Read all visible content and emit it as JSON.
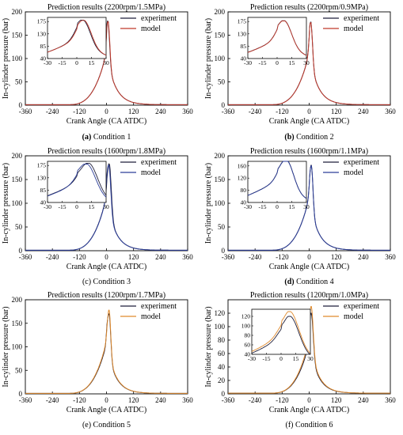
{
  "chart_data": [
    {
      "type": "line",
      "title": "Prediction results (2200rpm/1.5MPa)",
      "xlabel": "Crank Angle (CA ATDC)",
      "ylabel": "In-cylinder pressure (bar)",
      "caption_prefix": "(a)",
      "caption_text": " Condition 1",
      "caption_bold": true,
      "xlim": [
        -360,
        360
      ],
      "xticks": [
        -360,
        -240,
        -120,
        0,
        120,
        240,
        360
      ],
      "ylim": [
        0,
        200
      ],
      "yticks": [
        0,
        50,
        100,
        150,
        200
      ],
      "legend_position": "top-right",
      "peak": 180,
      "series": [
        {
          "name": "experiment",
          "color": "#1f1f3a",
          "peak": 180,
          "peak_angle": 7
        },
        {
          "name": "model",
          "color": "#c0392b",
          "peak": 179,
          "peak_angle": 8
        }
      ],
      "inset": {
        "xlim": [
          -30,
          30
        ],
        "xticks": [
          -30,
          -15,
          0,
          15,
          30
        ],
        "ylim": [
          40,
          190
        ],
        "yticks": [
          40,
          85,
          130,
          175
        ]
      }
    },
    {
      "type": "line",
      "title": "Prediction results (2200rpm/0.9MPa)",
      "xlabel": "Crank Angle (CA ATDC)",
      "ylabel": "In-cylinder pressure (bar)",
      "caption_prefix": "(b)",
      "caption_text": " Condition 2",
      "caption_bold": true,
      "xlim": [
        -360,
        360
      ],
      "xticks": [
        -360,
        -240,
        -120,
        0,
        120,
        240,
        360
      ],
      "ylim": [
        0,
        200
      ],
      "yticks": [
        0,
        50,
        100,
        150,
        200
      ],
      "legend_position": "top-right",
      "peak": 178,
      "series": [
        {
          "name": "experiment",
          "color": "#1f1f3a",
          "peak": 178,
          "peak_angle": 8
        },
        {
          "name": "model",
          "color": "#c0392b",
          "peak": 177,
          "peak_angle": 8
        }
      ],
      "inset": {
        "xlim": [
          -30,
          30
        ],
        "xticks": [
          -30,
          -15,
          0,
          15,
          30
        ],
        "ylim": [
          40,
          190
        ],
        "yticks": [
          40,
          85,
          130,
          175
        ]
      }
    },
    {
      "type": "line",
      "title": "Prediction results (1600rpm/1.8MPa)",
      "xlabel": "Crank Angle (CA ATDC)",
      "ylabel": "In-cylinder pressure (bar)",
      "caption_prefix": "(c)",
      "caption_text": " Condition 3",
      "caption_bold": false,
      "xlim": [
        -360,
        360
      ],
      "xticks": [
        -360,
        -240,
        -120,
        0,
        120,
        240,
        360
      ],
      "ylim": [
        0,
        200
      ],
      "yticks": [
        0,
        50,
        100,
        150,
        200
      ],
      "legend_position": "top-right",
      "peak": 183,
      "series": [
        {
          "name": "experiment",
          "color": "#1f1f3a",
          "peak": 183,
          "peak_angle": 13
        },
        {
          "name": "model",
          "color": "#2c3e99",
          "peak": 180,
          "peak_angle": 11
        }
      ],
      "inset": {
        "xlim": [
          -30,
          30
        ],
        "xticks": [
          -30,
          -15,
          0,
          15,
          30
        ],
        "ylim": [
          40,
          190
        ],
        "yticks": [
          40,
          85,
          130,
          175
        ]
      }
    },
    {
      "type": "line",
      "title": "Prediction results (1600rpm/1.1MPa)",
      "xlabel": "Crank Angle (CA ATDC)",
      "ylabel": "In-cylinder pressure (bar)",
      "caption_prefix": "(d)",
      "caption_text": " Condition 4",
      "caption_bold": true,
      "xlim": [
        -360,
        360
      ],
      "xticks": [
        -360,
        -240,
        -120,
        0,
        120,
        240,
        360
      ],
      "ylim": [
        0,
        200
      ],
      "yticks": [
        0,
        50,
        100,
        150,
        200
      ],
      "legend_position": "top-right",
      "peak": 180,
      "series": [
        {
          "name": "experiment",
          "color": "#1f1f3a",
          "peak": 180,
          "peak_angle": 10
        },
        {
          "name": "model",
          "color": "#2c3e99",
          "peak": 179,
          "peak_angle": 10
        }
      ],
      "inset": {
        "xlim": [
          -30,
          30
        ],
        "xticks": [
          -30,
          -15,
          0,
          15,
          30
        ],
        "ylim": [
          40,
          175
        ],
        "yticks": [
          40,
          80,
          120,
          160
        ]
      }
    },
    {
      "type": "line",
      "title": "Prediction results (1200rpm/1.7MPa)",
      "xlabel": "Crank Angle (CA ATDC)",
      "ylabel": "In-cylinder pressure (bar)",
      "caption_prefix": "(e)",
      "caption_text": " Condition 5",
      "caption_bold": false,
      "xlim": [
        -360,
        360
      ],
      "xticks": [
        -360,
        -240,
        -120,
        0,
        120,
        240,
        360
      ],
      "ylim": [
        0,
        200
      ],
      "yticks": [
        0,
        50,
        100,
        150,
        200
      ],
      "legend_position": "top-right",
      "peak": 178,
      "series": [
        {
          "name": "experiment",
          "color": "#1f1f3a",
          "peak": 170,
          "peak_angle": 12
        },
        {
          "name": "model",
          "color": "#e08a2c",
          "peak": 178,
          "peak_angle": 12
        }
      ],
      "inset": null
    },
    {
      "type": "line",
      "title": "Prediction results (1200rpm/1.0MPa)",
      "xlabel": "Crank Angle (CA ATDC)",
      "ylabel": "In-cylinder pressure (bar)",
      "caption_prefix": "(f)",
      "caption_text": " Condition 6",
      "caption_bold": false,
      "xlim": [
        -360,
        360
      ],
      "xticks": [
        -360,
        -240,
        -120,
        0,
        120,
        240,
        360
      ],
      "ylim": [
        0,
        140
      ],
      "yticks": [
        0,
        20,
        40,
        60,
        80,
        100,
        120
      ],
      "legend_position": "top-right",
      "peak": 130,
      "series": [
        {
          "name": "experiment",
          "color": "#1f1f3a",
          "peak": 120,
          "peak_angle": 10
        },
        {
          "name": "model",
          "color": "#e08a2c",
          "peak": 130,
          "peak_angle": 10
        }
      ],
      "inset": {
        "xlim": [
          -30,
          30
        ],
        "xticks": [
          -30,
          -15,
          0,
          15,
          30
        ],
        "ylim": [
          40,
          135
        ],
        "yticks": [
          40,
          60,
          80,
          100,
          120
        ]
      }
    }
  ]
}
